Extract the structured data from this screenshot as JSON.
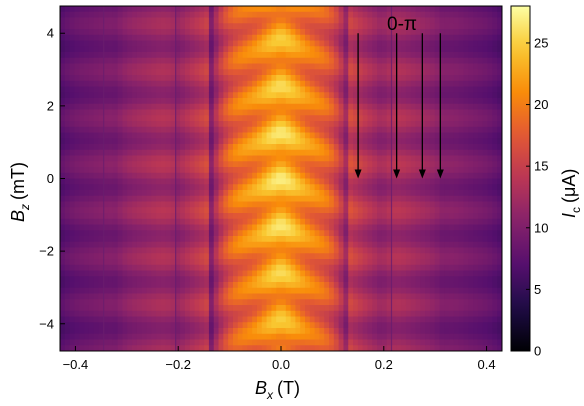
{
  "chart_data": {
    "type": "heatmap",
    "title": "",
    "x": {
      "label_main": "B",
      "label_sub": "x",
      "label_unit": "(T)",
      "range": [
        -0.43,
        0.43
      ],
      "ticks": [
        -0.4,
        -0.2,
        0.0,
        0.2,
        0.4
      ],
      "tick_labels": [
        "−0.4",
        "−0.2",
        "0.0",
        "0.2",
        "0.4"
      ]
    },
    "y": {
      "label_main": "B",
      "label_sub": "z",
      "label_unit": "(mT)",
      "range": [
        -4.75,
        4.75
      ],
      "ticks": [
        -4,
        -2,
        0,
        2,
        4
      ],
      "tick_labels": [
        "−4",
        "−2",
        "0",
        "2",
        "4"
      ]
    },
    "colorbar": {
      "label_main": "I",
      "label_sub": "c",
      "label_unit": "(μA)",
      "range": [
        0,
        28
      ],
      "ticks": [
        0,
        5,
        10,
        15,
        20,
        25
      ],
      "tick_labels": [
        "0",
        "5",
        "10",
        "15",
        "20",
        "25"
      ],
      "colormap": "inferno"
    },
    "annotation": {
      "text": "0-π",
      "arrow_x": [
        0.15,
        0.225,
        0.275,
        0.31
      ],
      "arrow_y_top": 4.0,
      "arrow_y_bottom": 0.0
    },
    "envelope": {
      "peak_x": 0.0,
      "central_lobe_edges": [
        -0.14,
        0.135
      ],
      "central_peak_uA": 27,
      "side_lobe_peak_uA": 18,
      "outer_uA": 8,
      "vertical_line_x": [
        -0.345,
        -0.205,
        0.215
      ]
    }
  }
}
